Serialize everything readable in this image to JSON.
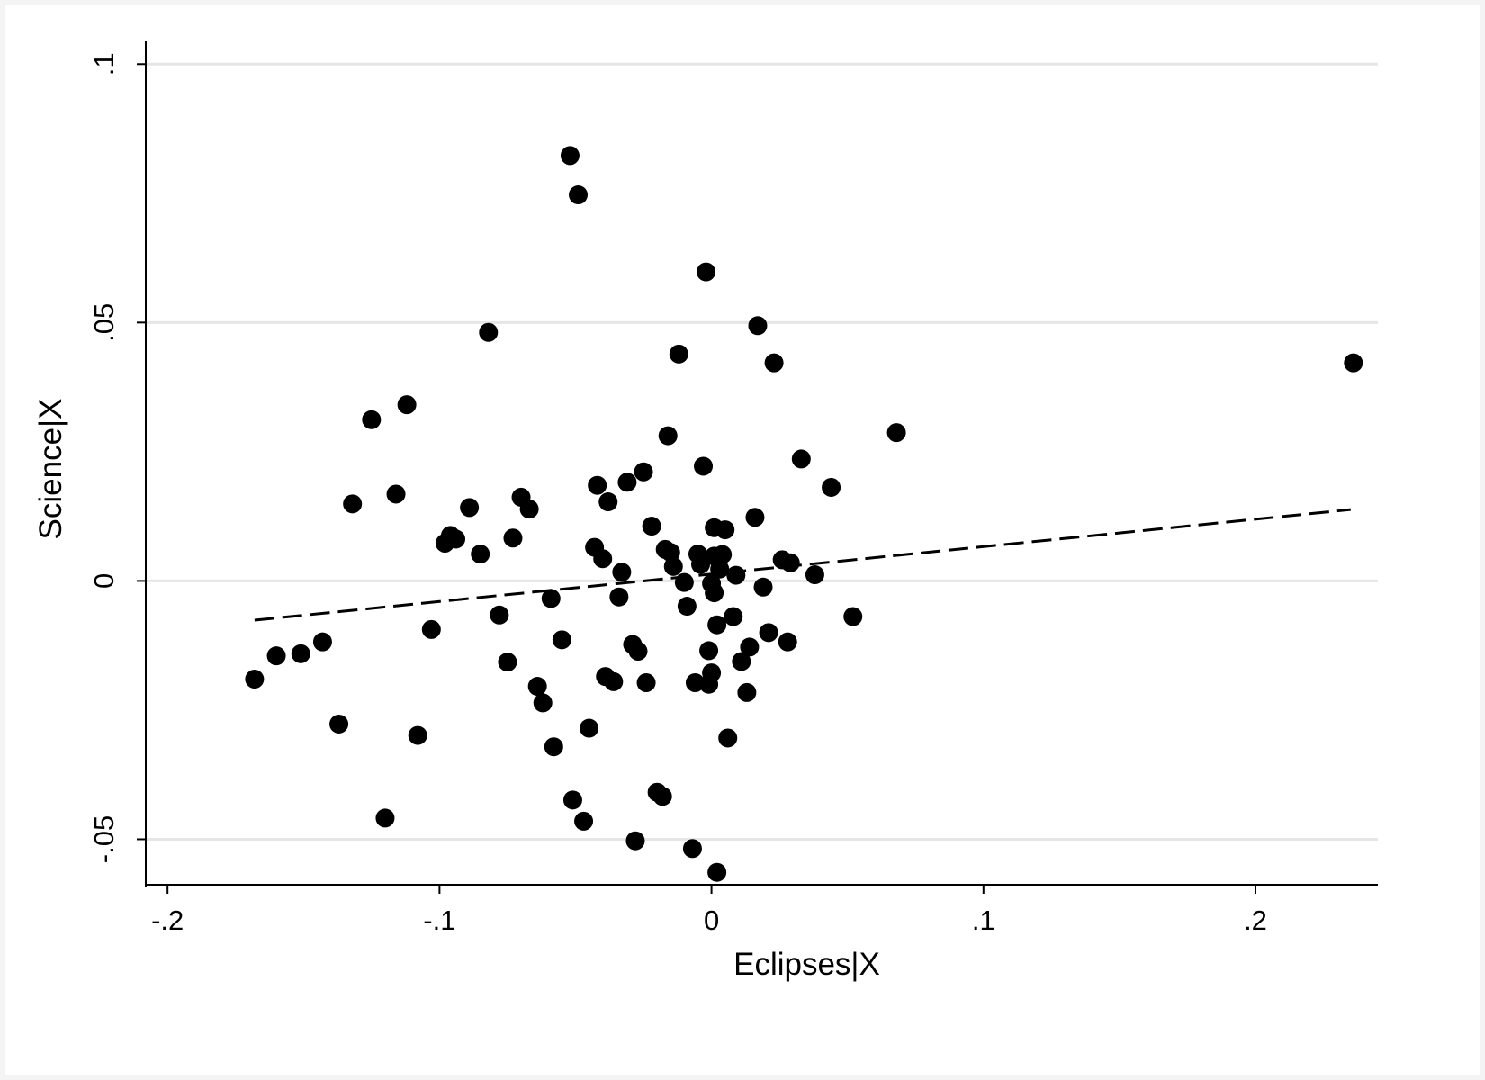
{
  "chart_data": {
    "type": "scatter",
    "title": "",
    "xlabel": "Eclipses|X",
    "ylabel": "Science|X",
    "xlim": [
      -0.208,
      0.245
    ],
    "ylim": [
      -0.0588,
      0.1044
    ],
    "x_ticks": [
      {
        "value": -0.2,
        "label": "-.2"
      },
      {
        "value": -0.1,
        "label": "-.1"
      },
      {
        "value": 0,
        "label": "0"
      },
      {
        "value": 0.1,
        "label": ".1"
      },
      {
        "value": 0.2,
        "label": ".2"
      }
    ],
    "y_ticks": [
      {
        "value": -0.05,
        "label": "-.05"
      },
      {
        "value": 0,
        "label": "0"
      },
      {
        "value": 0.05,
        "label": ".05"
      },
      {
        "value": 0.1,
        "label": ".1"
      }
    ],
    "grid": "horizontal",
    "legend": "none",
    "colors": {
      "marker": "#000000",
      "fit_line": "#000000",
      "grid": "#e6e6e6"
    },
    "fit_line": {
      "style": "dashed",
      "x": [
        -0.168,
        0.235
      ],
      "y": [
        -0.0076,
        0.0138
      ]
    },
    "points": [
      {
        "x": -0.168,
        "y": -0.019
      },
      {
        "x": -0.16,
        "y": -0.0145
      },
      {
        "x": -0.151,
        "y": -0.0141
      },
      {
        "x": -0.143,
        "y": -0.0118
      },
      {
        "x": -0.137,
        "y": -0.0277
      },
      {
        "x": -0.132,
        "y": 0.0149
      },
      {
        "x": -0.125,
        "y": 0.0312
      },
      {
        "x": -0.12,
        "y": -0.0459
      },
      {
        "x": -0.116,
        "y": 0.0168
      },
      {
        "x": -0.112,
        "y": 0.0341
      },
      {
        "x": -0.108,
        "y": -0.0299
      },
      {
        "x": -0.103,
        "y": -0.0094
      },
      {
        "x": -0.098,
        "y": 0.0073
      },
      {
        "x": -0.096,
        "y": 0.0088
      },
      {
        "x": -0.094,
        "y": 0.0081
      },
      {
        "x": -0.089,
        "y": 0.0142
      },
      {
        "x": -0.085,
        "y": 0.0052
      },
      {
        "x": -0.082,
        "y": 0.0481
      },
      {
        "x": -0.078,
        "y": -0.0066
      },
      {
        "x": -0.075,
        "y": -0.0157
      },
      {
        "x": -0.073,
        "y": 0.0083
      },
      {
        "x": -0.07,
        "y": 0.0162
      },
      {
        "x": -0.067,
        "y": 0.0139
      },
      {
        "x": -0.064,
        "y": -0.0204
      },
      {
        "x": -0.062,
        "y": -0.0236
      },
      {
        "x": -0.059,
        "y": -0.0034
      },
      {
        "x": -0.058,
        "y": -0.0321
      },
      {
        "x": -0.055,
        "y": -0.0114
      },
      {
        "x": -0.052,
        "y": 0.0823
      },
      {
        "x": -0.051,
        "y": -0.0424
      },
      {
        "x": -0.049,
        "y": 0.0747
      },
      {
        "x": -0.047,
        "y": -0.0465
      },
      {
        "x": -0.045,
        "y": -0.0285
      },
      {
        "x": -0.043,
        "y": 0.0065
      },
      {
        "x": -0.042,
        "y": 0.0185
      },
      {
        "x": -0.04,
        "y": 0.0043
      },
      {
        "x": -0.039,
        "y": -0.0185
      },
      {
        "x": -0.038,
        "y": 0.0153
      },
      {
        "x": -0.036,
        "y": -0.0195
      },
      {
        "x": -0.034,
        "y": -0.0031
      },
      {
        "x": -0.033,
        "y": 0.0017
      },
      {
        "x": -0.031,
        "y": 0.0191
      },
      {
        "x": -0.029,
        "y": -0.0123
      },
      {
        "x": -0.028,
        "y": -0.0503
      },
      {
        "x": -0.027,
        "y": -0.0136
      },
      {
        "x": -0.025,
        "y": 0.0211
      },
      {
        "x": -0.024,
        "y": -0.0197
      },
      {
        "x": -0.022,
        "y": 0.0106
      },
      {
        "x": -0.02,
        "y": -0.0409
      },
      {
        "x": -0.018,
        "y": -0.0417
      },
      {
        "x": -0.017,
        "y": 0.0061
      },
      {
        "x": -0.016,
        "y": 0.0281
      },
      {
        "x": -0.015,
        "y": 0.0055
      },
      {
        "x": -0.014,
        "y": 0.0028
      },
      {
        "x": -0.012,
        "y": 0.0439
      },
      {
        "x": -0.01,
        "y": -0.0003
      },
      {
        "x": -0.009,
        "y": -0.0049
      },
      {
        "x": -0.007,
        "y": -0.0518
      },
      {
        "x": -0.006,
        "y": -0.0197
      },
      {
        "x": -0.005,
        "y": 0.0052
      },
      {
        "x": -0.004,
        "y": 0.0032
      },
      {
        "x": -0.003,
        "y": 0.0222
      },
      {
        "x": -0.002,
        "y": 0.0598
      },
      {
        "x": -0.001,
        "y": -0.0135
      },
      {
        "x": -0.001,
        "y": -0.02
      },
      {
        "x": 0.0,
        "y": -0.0005
      },
      {
        "x": 0.0,
        "y": -0.0178
      },
      {
        "x": 0.001,
        "y": 0.0103
      },
      {
        "x": 0.001,
        "y": 0.0048
      },
      {
        "x": 0.001,
        "y": -0.0023
      },
      {
        "x": 0.002,
        "y": -0.0564
      },
      {
        "x": 0.002,
        "y": -0.0085
      },
      {
        "x": 0.003,
        "y": 0.0023
      },
      {
        "x": 0.004,
        "y": 0.0051
      },
      {
        "x": 0.005,
        "y": 0.0099
      },
      {
        "x": 0.006,
        "y": -0.0304
      },
      {
        "x": 0.008,
        "y": -0.0069
      },
      {
        "x": 0.009,
        "y": 0.0011
      },
      {
        "x": 0.011,
        "y": -0.0156
      },
      {
        "x": 0.013,
        "y": -0.0216
      },
      {
        "x": 0.014,
        "y": -0.0128
      },
      {
        "x": 0.016,
        "y": 0.0123
      },
      {
        "x": 0.017,
        "y": 0.0494
      },
      {
        "x": 0.019,
        "y": -0.0012
      },
      {
        "x": 0.021,
        "y": -0.01
      },
      {
        "x": 0.023,
        "y": 0.0422
      },
      {
        "x": 0.026,
        "y": 0.0041
      },
      {
        "x": 0.028,
        "y": -0.0118
      },
      {
        "x": 0.029,
        "y": 0.0035
      },
      {
        "x": 0.033,
        "y": 0.0236
      },
      {
        "x": 0.038,
        "y": 0.0012
      },
      {
        "x": 0.044,
        "y": 0.0181
      },
      {
        "x": 0.052,
        "y": -0.0069
      },
      {
        "x": 0.068,
        "y": 0.0287
      },
      {
        "x": 0.236,
        "y": 0.0422
      }
    ]
  }
}
